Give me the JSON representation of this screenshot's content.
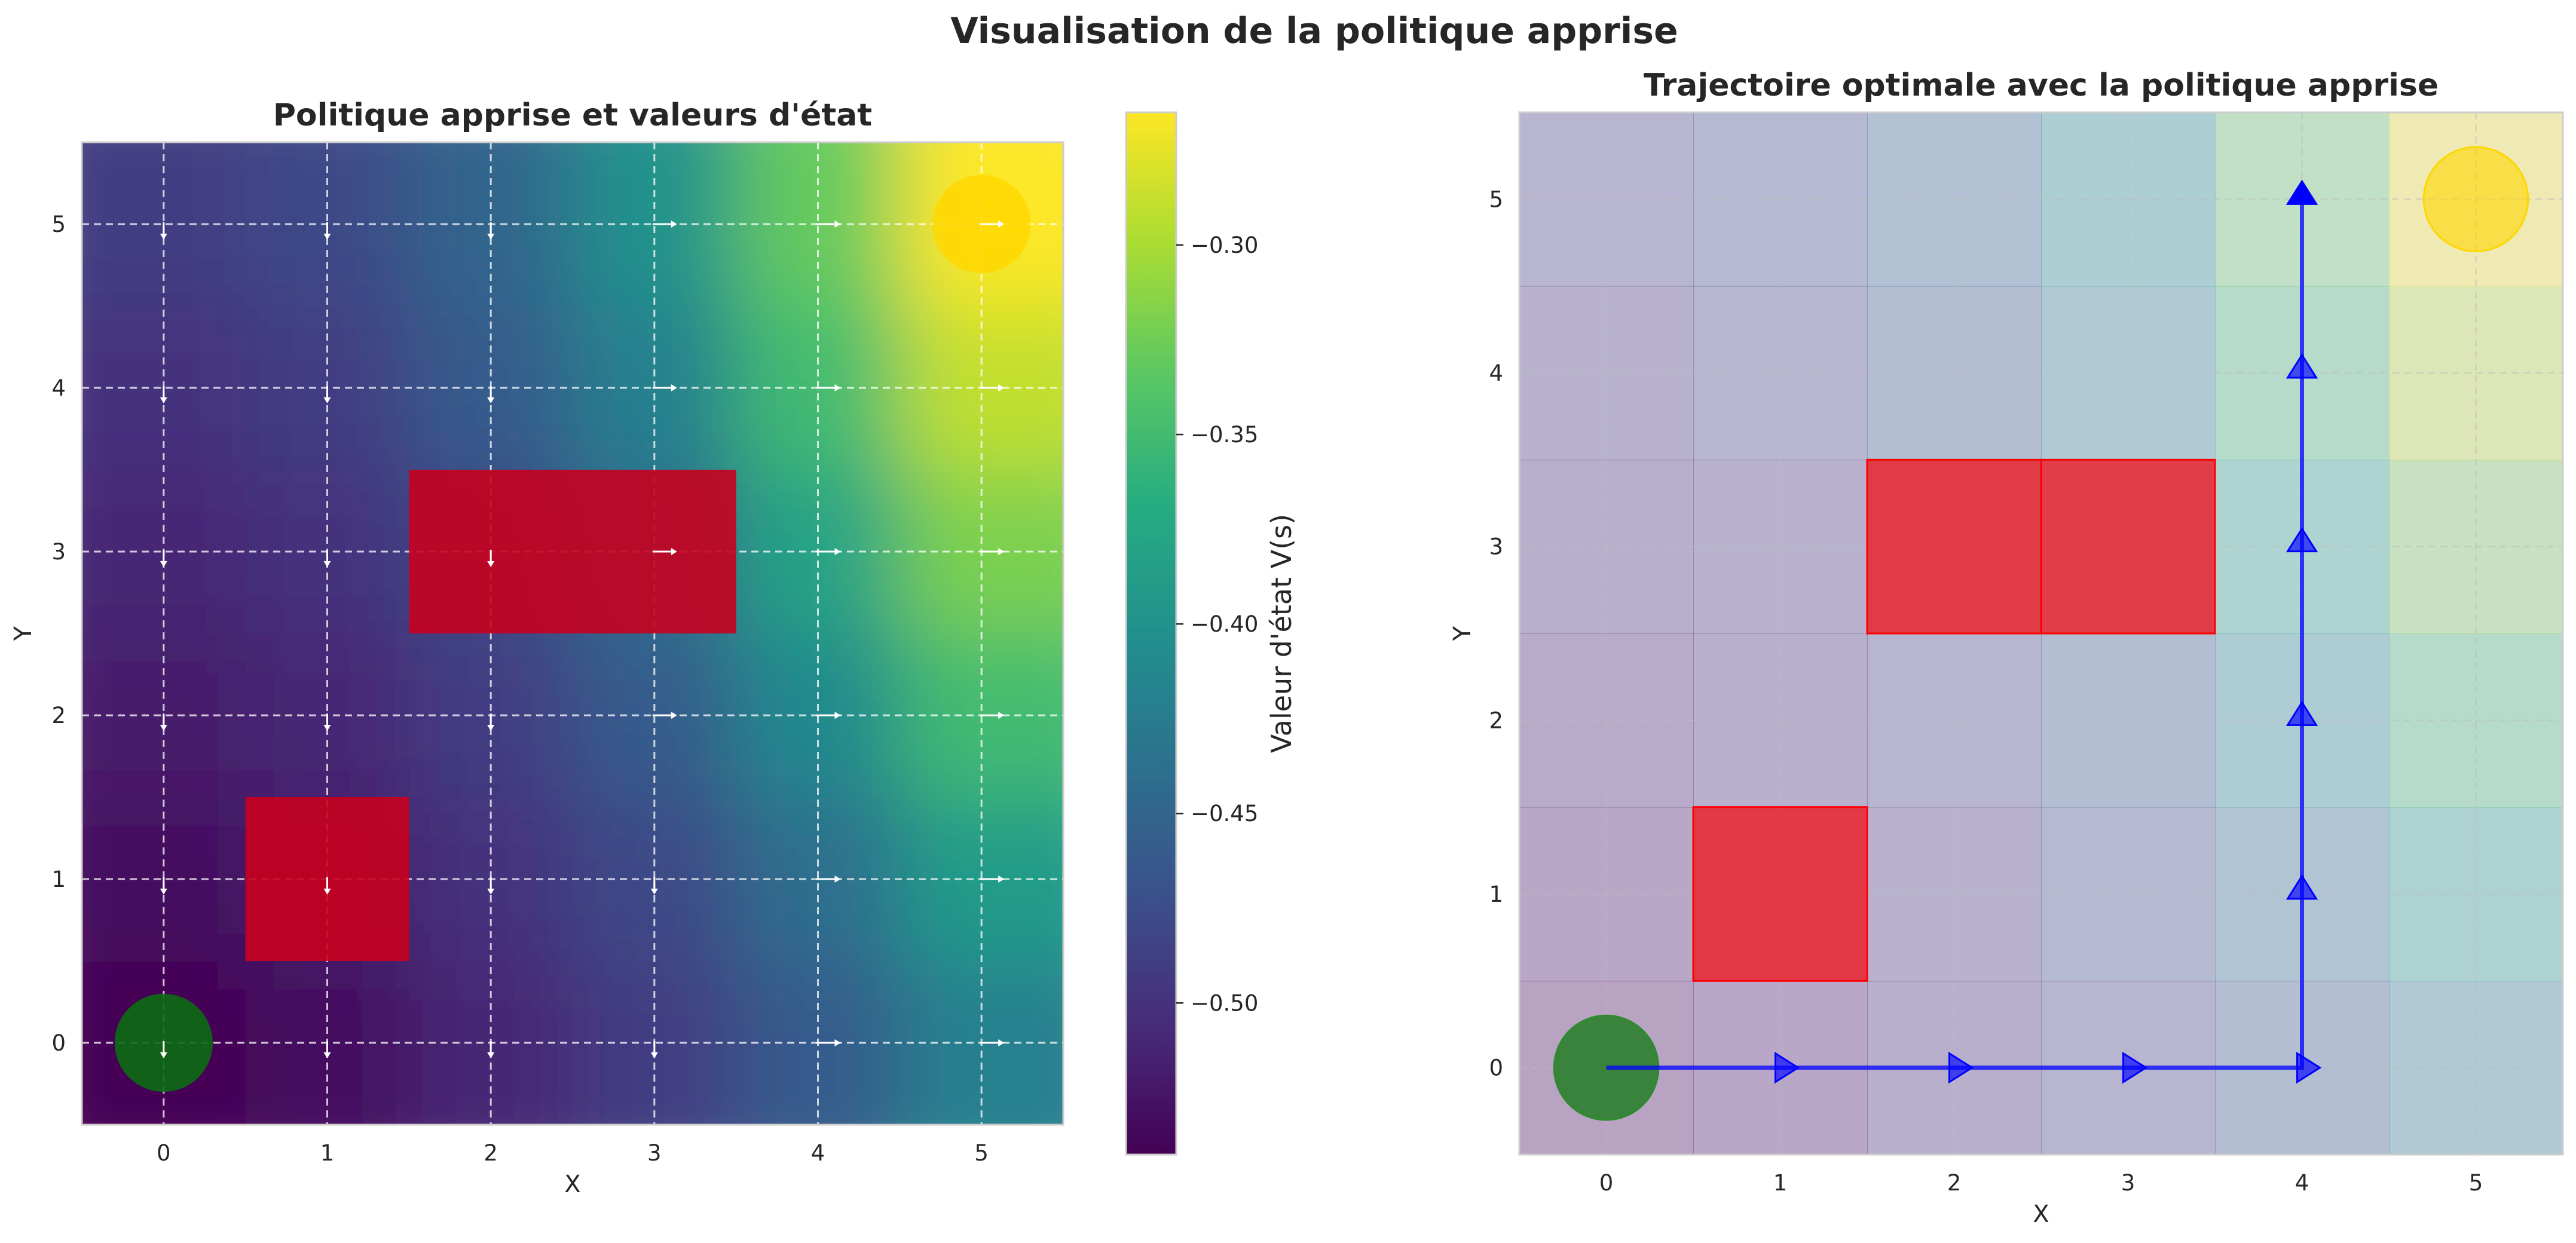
{
  "suptitle": "Visualisation de la politique apprise",
  "chart_data": [
    {
      "type": "heatmap",
      "title": "Politique apprise et valeurs d'état",
      "xlabel": "X",
      "ylabel": "Y",
      "xticks": [
        0,
        1,
        2,
        3,
        4,
        5
      ],
      "yticks": [
        0,
        1,
        2,
        3,
        4,
        5
      ],
      "xlim": [
        -0.5,
        5.5
      ],
      "ylim": [
        -0.5,
        5.5
      ],
      "grid": true,
      "colormap": "viridis",
      "colorbar": {
        "label": "Valeur d'état V(s)",
        "ticks": [
          -0.3,
          -0.35,
          -0.4,
          -0.45,
          -0.5
        ],
        "tick_labels": [
          "−0.30",
          "−0.35",
          "−0.40",
          "−0.45",
          "−0.50"
        ],
        "range": [
          -0.54,
          -0.265
        ]
      },
      "values": [
        [
          -0.54,
          -0.53,
          -0.51,
          -0.49,
          -0.46,
          -0.42
        ],
        [
          -0.53,
          -0.52,
          -0.5,
          -0.48,
          -0.44,
          -0.39
        ],
        [
          -0.52,
          -0.51,
          -0.49,
          -0.46,
          -0.41,
          -0.35
        ],
        [
          -0.51,
          -0.5,
          -0.48,
          -0.44,
          -0.38,
          -0.32
        ],
        [
          -0.5,
          -0.49,
          -0.46,
          -0.42,
          -0.35,
          -0.29
        ],
        [
          -0.49,
          -0.48,
          -0.45,
          -0.4,
          -0.33,
          -0.265
        ]
      ],
      "policy": [
        [
          "down",
          "down",
          "down",
          "down",
          "right",
          "right"
        ],
        [
          "down",
          "down",
          "down",
          "down",
          "right",
          "right"
        ],
        [
          "down",
          "down",
          "down",
          "right",
          "right",
          "right"
        ],
        [
          "down",
          "down",
          "down",
          "right",
          "right",
          "right"
        ],
        [
          "down",
          "down",
          "down",
          "right",
          "right",
          "right"
        ],
        [
          "down",
          "down",
          "down",
          "right",
          "right",
          "right"
        ]
      ],
      "obstacles": [
        [
          1,
          1
        ],
        [
          2,
          3
        ],
        [
          3,
          3
        ]
      ],
      "start": [
        0,
        0
      ],
      "goal": [
        5,
        5
      ],
      "colors": {
        "obstacle": "#c8001e",
        "start": "#0b6b12",
        "goal": "#ffd700",
        "arrow": "#ffffff"
      }
    },
    {
      "type": "line",
      "title": "Trajectoire optimale avec la politique apprise",
      "xlabel": "X",
      "ylabel": "Y",
      "xticks": [
        0,
        1,
        2,
        3,
        4,
        5
      ],
      "yticks": [
        0,
        1,
        2,
        3,
        4,
        5
      ],
      "xlim": [
        -0.5,
        5.5
      ],
      "ylim": [
        -0.5,
        5.5
      ],
      "grid": true,
      "series": [
        {
          "x": [
            0,
            1,
            2,
            3,
            4,
            4,
            4,
            4,
            4,
            4
          ],
          "y": [
            0,
            0,
            0,
            0,
            0,
            1,
            2,
            3,
            4,
            5
          ]
        }
      ],
      "obstacles": [
        [
          1,
          1
        ],
        [
          2,
          3
        ],
        [
          3,
          3
        ]
      ],
      "start": [
        0,
        0
      ],
      "goal": [
        5,
        5
      ],
      "colors": {
        "path": "#0000ff",
        "obstacle": "#ee1c25",
        "start": "#1a7a1a",
        "goal": "#ffd700"
      }
    }
  ]
}
